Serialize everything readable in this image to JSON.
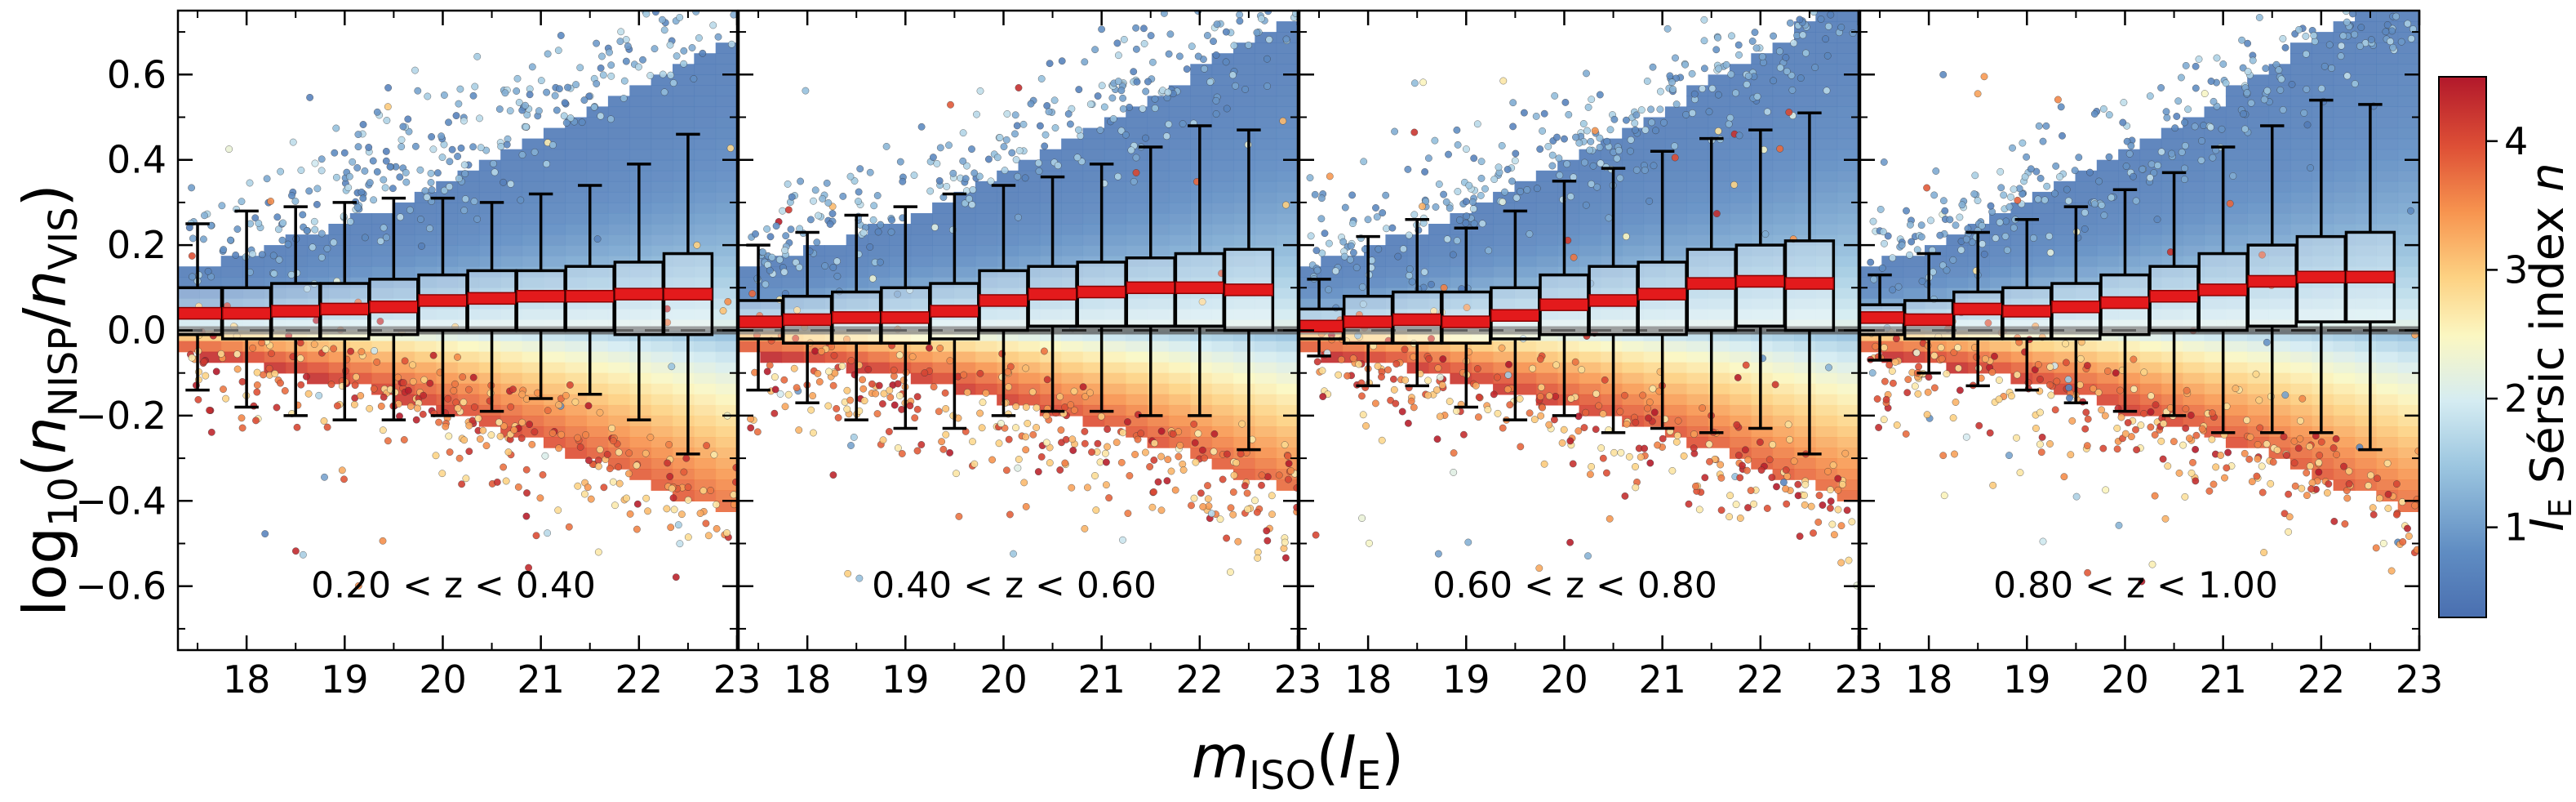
{
  "chart_data": {
    "type": "scatter",
    "description_note": "Four-panel box plot with overlaid colour-coded galaxy scatter and binned 2D colour map",
    "ylabel": "log10(n_NISP/n_VIS)",
    "ylabel_main": "log",
    "ylabel_sub": "10",
    "ylabel_paren_open": "(",
    "ylabel_n1": "n",
    "ylabel_n1_sub": "NISP",
    "ylabel_slash": "/",
    "ylabel_n2": "n",
    "ylabel_n2_sub": "VIS",
    "ylabel_paren_close": ")",
    "xlabel": "m_ISO(I_E)",
    "xlabel_m": "m",
    "xlabel_m_sub": "ISO",
    "xlabel_paren_open": "(",
    "xlabel_I": "I",
    "xlabel_I_sub": "E",
    "xlabel_paren_close": ")",
    "xlim": [
      17.3,
      23.0
    ],
    "ylim": [
      -0.75,
      0.75
    ],
    "x_ticks": [
      18,
      19,
      20,
      21,
      22,
      23
    ],
    "x_tick_labels": [
      "18",
      "19",
      "20",
      "21",
      "22",
      "23"
    ],
    "y_ticks": [
      -0.6,
      -0.4,
      -0.2,
      0.0,
      0.2,
      0.4,
      0.6
    ],
    "y_tick_labels": [
      "−0.6",
      "−0.4",
      "−0.2",
      "0.0",
      "0.2",
      "0.4",
      "0.6"
    ],
    "reference_line_y": 0.0,
    "colorbar": {
      "label_I": "I",
      "label_sub": "E",
      "label_rest": " Sérsic index ",
      "label_n": "n",
      "range": [
        0.3,
        4.5
      ],
      "ticks": [
        1,
        2,
        3,
        4
      ],
      "tick_labels": [
        "1",
        "2",
        "3",
        "4"
      ],
      "colormap": "RdYlBu_r",
      "low_color": "#4a6fb0",
      "mid_color": "#fbf7c2",
      "high_color": "#b2182b"
    },
    "panels": [
      {
        "label": "0.20 < z < 0.40",
        "boxes": [
          {
            "x": 17.5,
            "median": 0.04,
            "q1": -0.01,
            "q3": 0.1,
            "whislo": -0.14,
            "whishi": 0.25
          },
          {
            "x": 18.0,
            "median": 0.04,
            "q1": -0.02,
            "q3": 0.1,
            "whislo": -0.18,
            "whishi": 0.28
          },
          {
            "x": 18.5,
            "median": 0.045,
            "q1": -0.02,
            "q3": 0.11,
            "whislo": -0.2,
            "whishi": 0.29
          },
          {
            "x": 19.0,
            "median": 0.05,
            "q1": -0.02,
            "q3": 0.11,
            "whislo": -0.21,
            "whishi": 0.3
          },
          {
            "x": 19.5,
            "median": 0.055,
            "q1": -0.01,
            "q3": 0.12,
            "whislo": -0.21,
            "whishi": 0.31
          },
          {
            "x": 20.0,
            "median": 0.07,
            "q1": 0.0,
            "q3": 0.13,
            "whislo": -0.2,
            "whishi": 0.31
          },
          {
            "x": 20.5,
            "median": 0.075,
            "q1": 0.0,
            "q3": 0.14,
            "whislo": -0.19,
            "whishi": 0.3
          },
          {
            "x": 21.0,
            "median": 0.08,
            "q1": 0.0,
            "q3": 0.14,
            "whislo": -0.16,
            "whishi": 0.32
          },
          {
            "x": 21.5,
            "median": 0.08,
            "q1": 0.0,
            "q3": 0.15,
            "whislo": -0.15,
            "whishi": 0.34
          },
          {
            "x": 22.0,
            "median": 0.085,
            "q1": -0.01,
            "q3": 0.16,
            "whislo": -0.21,
            "whishi": 0.39
          },
          {
            "x": 22.5,
            "median": 0.085,
            "q1": -0.01,
            "q3": 0.18,
            "whislo": -0.29,
            "whishi": 0.46
          }
        ]
      },
      {
        "label": "0.40 < z < 0.60",
        "boxes": [
          {
            "x": 17.5,
            "median": 0.02,
            "q1": -0.02,
            "q3": 0.07,
            "whislo": -0.14,
            "whishi": 0.2
          },
          {
            "x": 18.0,
            "median": 0.025,
            "q1": -0.03,
            "q3": 0.08,
            "whislo": -0.17,
            "whishi": 0.23
          },
          {
            "x": 18.5,
            "median": 0.03,
            "q1": -0.03,
            "q3": 0.09,
            "whislo": -0.21,
            "whishi": 0.27
          },
          {
            "x": 19.0,
            "median": 0.03,
            "q1": -0.03,
            "q3": 0.1,
            "whislo": -0.23,
            "whishi": 0.29
          },
          {
            "x": 19.5,
            "median": 0.045,
            "q1": -0.02,
            "q3": 0.11,
            "whislo": -0.23,
            "whishi": 0.32
          },
          {
            "x": 20.0,
            "median": 0.07,
            "q1": 0.0,
            "q3": 0.14,
            "whislo": -0.2,
            "whishi": 0.34
          },
          {
            "x": 20.5,
            "median": 0.085,
            "q1": 0.01,
            "q3": 0.15,
            "whislo": -0.19,
            "whishi": 0.36
          },
          {
            "x": 21.0,
            "median": 0.09,
            "q1": 0.01,
            "q3": 0.16,
            "whislo": -0.19,
            "whishi": 0.39
          },
          {
            "x": 21.5,
            "median": 0.1,
            "q1": 0.01,
            "q3": 0.17,
            "whislo": -0.2,
            "whishi": 0.43
          },
          {
            "x": 22.0,
            "median": 0.1,
            "q1": 0.01,
            "q3": 0.18,
            "whislo": -0.2,
            "whishi": 0.48
          },
          {
            "x": 22.5,
            "median": 0.095,
            "q1": 0.0,
            "q3": 0.19,
            "whislo": -0.28,
            "whishi": 0.47
          }
        ]
      },
      {
        "label": "0.60 < z < 0.80",
        "boxes": [
          {
            "x": 17.5,
            "median": 0.01,
            "q1": -0.02,
            "q3": 0.05,
            "whislo": -0.06,
            "whishi": 0.12
          },
          {
            "x": 18.0,
            "median": 0.02,
            "q1": -0.03,
            "q3": 0.08,
            "whislo": -0.13,
            "whishi": 0.22
          },
          {
            "x": 18.5,
            "median": 0.025,
            "q1": -0.03,
            "q3": 0.09,
            "whislo": -0.13,
            "whishi": 0.26
          },
          {
            "x": 19.0,
            "median": 0.02,
            "q1": -0.03,
            "q3": 0.09,
            "whislo": -0.18,
            "whishi": 0.24
          },
          {
            "x": 19.5,
            "median": 0.035,
            "q1": -0.02,
            "q3": 0.1,
            "whislo": -0.21,
            "whishi": 0.28
          },
          {
            "x": 20.0,
            "median": 0.06,
            "q1": -0.01,
            "q3": 0.13,
            "whislo": -0.2,
            "whishi": 0.35
          },
          {
            "x": 20.5,
            "median": 0.07,
            "q1": -0.01,
            "q3": 0.15,
            "whislo": -0.24,
            "whishi": 0.38
          },
          {
            "x": 21.0,
            "median": 0.085,
            "q1": -0.01,
            "q3": 0.16,
            "whislo": -0.23,
            "whishi": 0.42
          },
          {
            "x": 21.5,
            "median": 0.11,
            "q1": 0.0,
            "q3": 0.19,
            "whislo": -0.24,
            "whishi": 0.45
          },
          {
            "x": 22.0,
            "median": 0.115,
            "q1": 0.01,
            "q3": 0.2,
            "whislo": -0.23,
            "whishi": 0.47
          },
          {
            "x": 22.5,
            "median": 0.11,
            "q1": 0.0,
            "q3": 0.21,
            "whislo": -0.29,
            "whishi": 0.51
          }
        ]
      },
      {
        "label": "0.80 < z < 1.00",
        "boxes": [
          {
            "x": 17.5,
            "median": 0.03,
            "q1": -0.01,
            "q3": 0.06,
            "whislo": -0.07,
            "whishi": 0.13
          },
          {
            "x": 18.0,
            "median": 0.025,
            "q1": -0.02,
            "q3": 0.07,
            "whislo": -0.1,
            "whishi": 0.18
          },
          {
            "x": 18.5,
            "median": 0.05,
            "q1": -0.02,
            "q3": 0.09,
            "whislo": -0.13,
            "whishi": 0.23
          },
          {
            "x": 19.0,
            "median": 0.045,
            "q1": -0.02,
            "q3": 0.1,
            "whislo": -0.14,
            "whishi": 0.26
          },
          {
            "x": 19.5,
            "median": 0.055,
            "q1": -0.02,
            "q3": 0.11,
            "whislo": -0.17,
            "whishi": 0.29
          },
          {
            "x": 20.0,
            "median": 0.065,
            "q1": -0.01,
            "q3": 0.13,
            "whislo": -0.19,
            "whishi": 0.33
          },
          {
            "x": 20.5,
            "median": 0.08,
            "q1": 0.0,
            "q3": 0.15,
            "whislo": -0.2,
            "whishi": 0.37
          },
          {
            "x": 21.0,
            "median": 0.095,
            "q1": 0.0,
            "q3": 0.18,
            "whislo": -0.24,
            "whishi": 0.43
          },
          {
            "x": 21.5,
            "median": 0.115,
            "q1": 0.01,
            "q3": 0.2,
            "whislo": -0.24,
            "whishi": 0.48
          },
          {
            "x": 22.0,
            "median": 0.125,
            "q1": 0.02,
            "q3": 0.22,
            "whislo": -0.24,
            "whishi": 0.54
          },
          {
            "x": 22.5,
            "median": 0.125,
            "q1": 0.02,
            "q3": 0.23,
            "whislo": -0.28,
            "whishi": 0.53
          }
        ]
      }
    ]
  }
}
